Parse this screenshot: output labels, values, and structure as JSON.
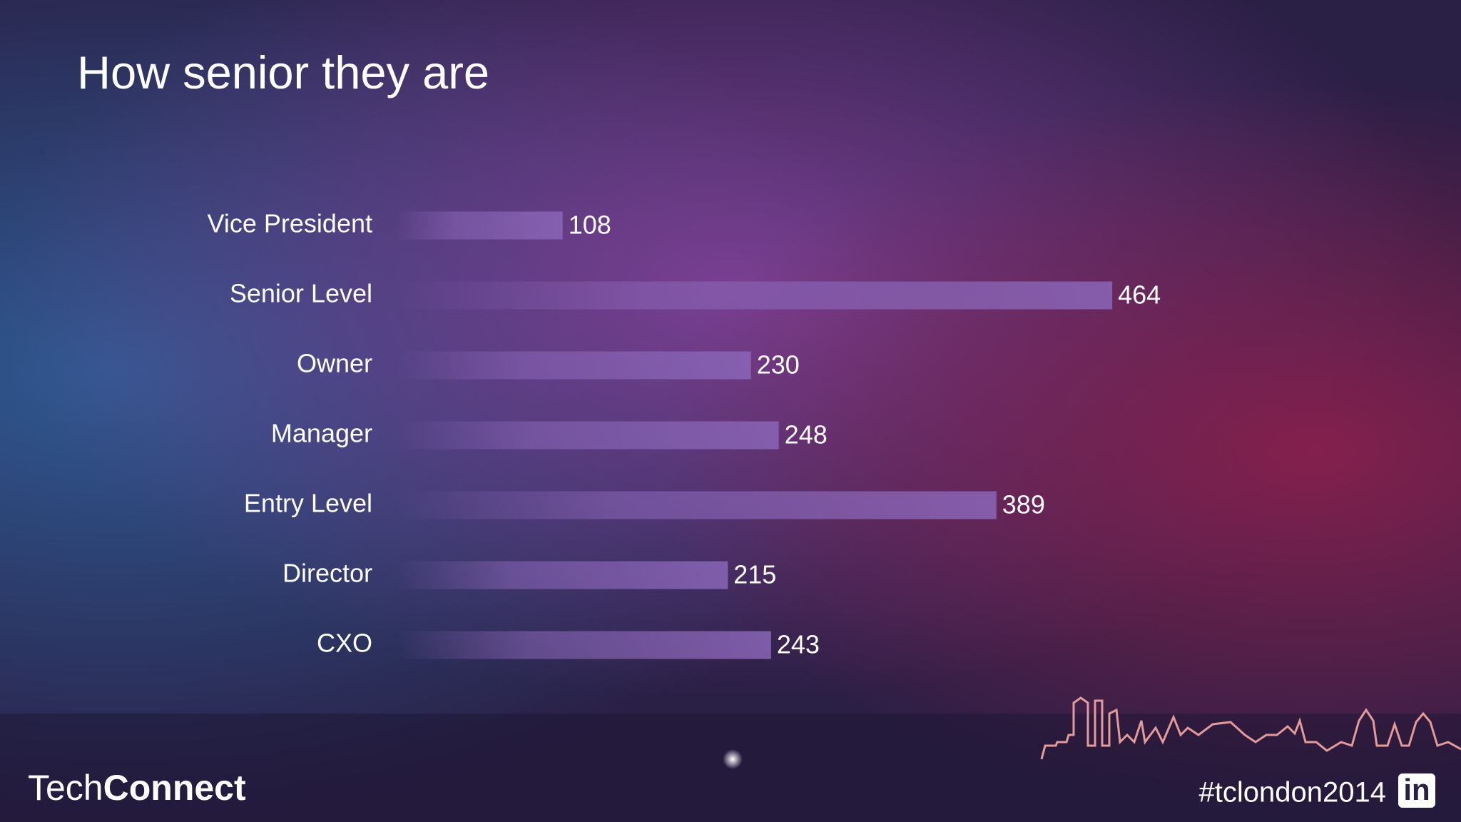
{
  "chart_data": {
    "type": "bar",
    "orientation": "horizontal",
    "title": "How senior they are",
    "categories": [
      "Vice President",
      "Senior Level",
      "Owner",
      "Manager",
      "Entry Level",
      "Director",
      "CXO"
    ],
    "values": [
      108,
      464,
      230,
      248,
      389,
      215,
      243
    ],
    "color": "#7a55a8",
    "xlim": [
      0,
      500
    ]
  },
  "footer": {
    "brand_light": "Tech",
    "brand_bold": "Connect",
    "hashtag": "#tclondon2014",
    "logo": "in"
  }
}
